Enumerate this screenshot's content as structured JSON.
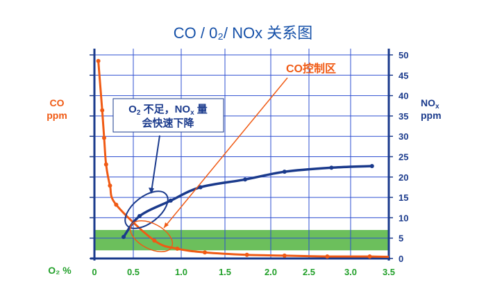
{
  "chart_data": {
    "type": "line",
    "title": "CO / 0₂/ NOx 关系图",
    "xlabel": "O₂ %",
    "ylabel_left": "CO ppm",
    "ylabel_right": "NOₓ ppm",
    "xlim": [
      0,
      3.5
    ],
    "ylim": [
      0,
      50
    ],
    "x_ticks": [
      "0",
      "0.5",
      "1.0",
      "1.5",
      "2.0",
      "2.5",
      "3.0",
      "3.5"
    ],
    "y_ticks": [
      "0",
      "5",
      "10",
      "15",
      "20",
      "25",
      "30",
      "35",
      "40",
      "45",
      "50"
    ],
    "grid": true,
    "series": [
      {
        "name": "CO",
        "color": "#f05a14",
        "axis": "left",
        "x": [
          0.05,
          0.1,
          0.125,
          0.15,
          0.2,
          0.28,
          0.72,
          0.96,
          1.27,
          1.74,
          2.18,
          2.72,
          3.25
        ],
        "y": [
          48.5,
          36.4,
          29.6,
          23.1,
          17.9,
          13.2,
          4.4,
          2.4,
          1.5,
          0.9,
          0.7,
          0.5,
          0.5
        ]
      },
      {
        "name": "NOx",
        "color": "#1a3a8c",
        "axis": "right",
        "x": [
          0.375,
          0.565,
          0.89,
          1.22,
          1.72,
          2.18,
          2.77,
          3.28
        ],
        "y": [
          5.3,
          10.4,
          14.2,
          17.5,
          19.4,
          21.3,
          22.3,
          22.7
        ]
      }
    ],
    "band": {
      "from": 2,
      "to": 7,
      "color": "#6cbf5c"
    },
    "annotations": {
      "co_zone": "CO控制区",
      "nox_note_line1_a": "O",
      "nox_note_line1_sub": "2",
      "nox_note_line1_b": " 不足，NO",
      "nox_note_line1_sub2": "x",
      "nox_note_line1_c": " 量",
      "nox_note_line2": "会快速下降"
    },
    "colors": {
      "grid": "#2d4fd0",
      "axis": "#1a3a8c",
      "co": "#f05a14",
      "nox": "#1a3a8c",
      "xticks": "#22a02a"
    }
  }
}
